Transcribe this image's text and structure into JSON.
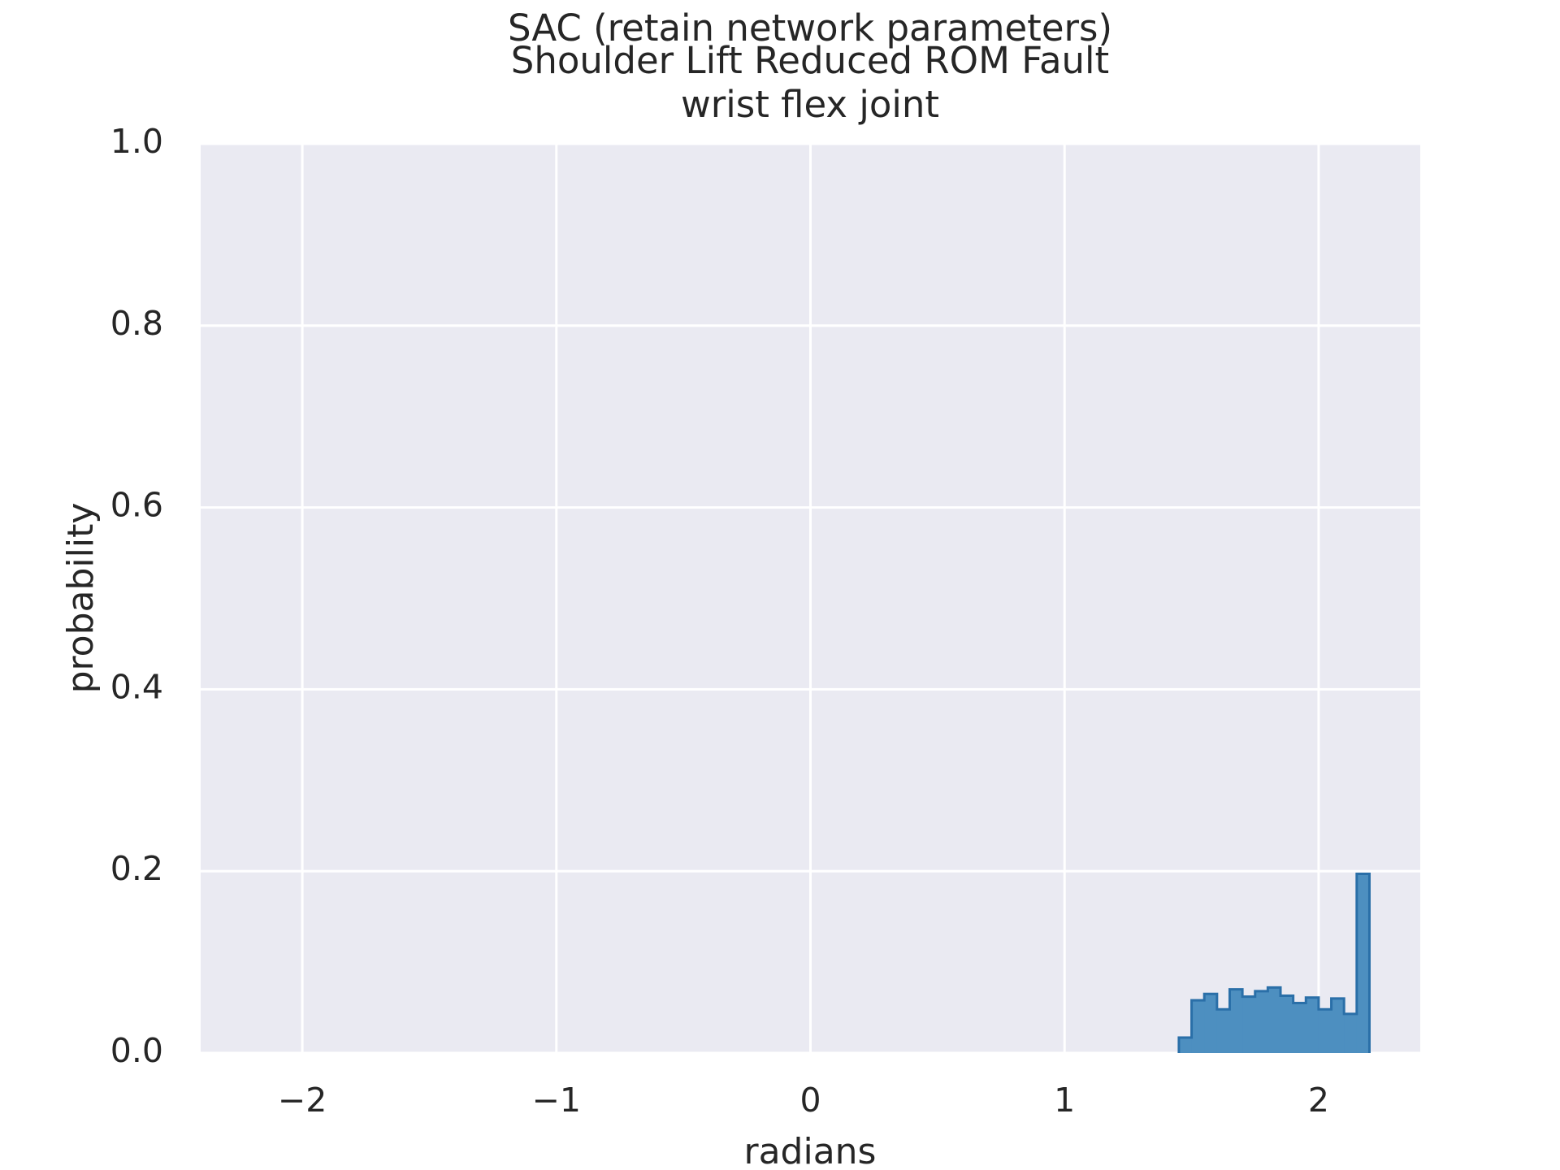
{
  "chart_data": {
    "type": "bar",
    "title_lines": [
      "SAC (retain network parameters)",
      "Shoulder Lift Reduced ROM Fault",
      "wrist flex joint"
    ],
    "xlabel": "radians",
    "ylabel": "probability",
    "xlim": [
      -2.4,
      2.4
    ],
    "ylim": [
      0,
      1.0
    ],
    "x_ticks": [
      -2,
      -1,
      0,
      1,
      2
    ],
    "x_tick_labels": [
      "−2",
      "−1",
      "0",
      "1",
      "2"
    ],
    "y_ticks": [
      0,
      0.2,
      0.4,
      0.6,
      0.8,
      1.0
    ],
    "y_tick_labels": [
      "0.0",
      "0.2",
      "0.4",
      "0.6",
      "0.8",
      "1.0"
    ],
    "grid": true,
    "histogram": {
      "style": "step-filled",
      "bin_edges": [
        1.45,
        1.5,
        1.55,
        1.6,
        1.65,
        1.7,
        1.75,
        1.8,
        1.85,
        1.9,
        1.95,
        2.0,
        2.05,
        2.1,
        2.15,
        2.2
      ],
      "values": [
        0.017,
        0.058,
        0.065,
        0.048,
        0.07,
        0.062,
        0.068,
        0.072,
        0.063,
        0.055,
        0.061,
        0.048,
        0.06,
        0.043,
        0.197
      ]
    },
    "colors": {
      "bar_fill": "#4d8fc0",
      "bar_edge": "#2a6fa8",
      "plot_background": "#eaeaf2",
      "grid": "#ffffff"
    }
  }
}
